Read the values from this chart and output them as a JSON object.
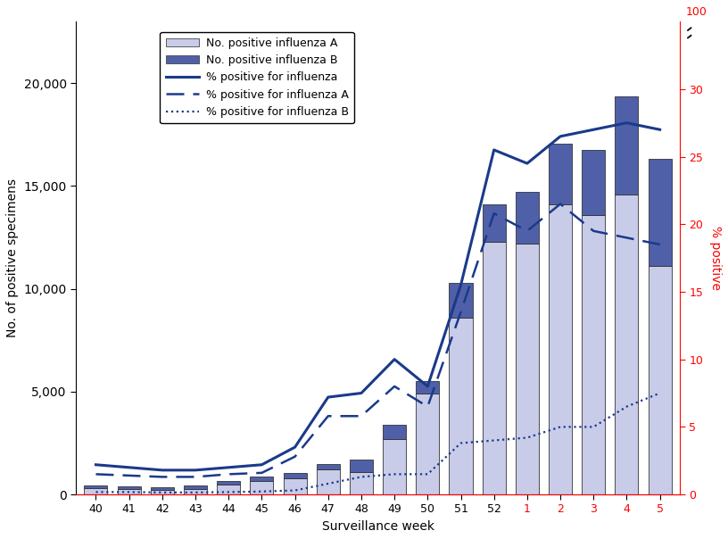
{
  "weeks": [
    "40",
    "41",
    "42",
    "43",
    "44",
    "45",
    "46",
    "47",
    "48",
    "49",
    "50",
    "51",
    "52",
    "1",
    "2",
    "3",
    "4",
    "5"
  ],
  "week_colors": [
    "black",
    "black",
    "black",
    "black",
    "black",
    "black",
    "black",
    "black",
    "black",
    "black",
    "black",
    "black",
    "black",
    "red",
    "red",
    "red",
    "red",
    "red"
  ],
  "flu_A": [
    290,
    270,
    230,
    280,
    480,
    650,
    800,
    1200,
    1100,
    2700,
    4900,
    8600,
    12300,
    12200,
    14100,
    13600,
    14600,
    11100
  ],
  "flu_B": [
    130,
    120,
    120,
    150,
    180,
    220,
    250,
    300,
    600,
    700,
    600,
    1700,
    1800,
    2500,
    2950,
    3150,
    4750,
    5200
  ],
  "pct_total": [
    2.2,
    2.0,
    1.8,
    1.8,
    2.0,
    2.2,
    3.5,
    7.2,
    7.5,
    10.0,
    8.0,
    15.5,
    25.5,
    24.5,
    26.5,
    27.0,
    27.5,
    27.0
  ],
  "pct_A": [
    1.5,
    1.4,
    1.3,
    1.3,
    1.5,
    1.6,
    2.8,
    5.8,
    5.8,
    8.0,
    6.5,
    13.5,
    20.8,
    19.5,
    21.5,
    19.5,
    19.0,
    18.5
  ],
  "pct_B": [
    0.18,
    0.18,
    0.15,
    0.15,
    0.18,
    0.22,
    0.3,
    0.8,
    1.3,
    1.5,
    1.5,
    3.8,
    4.0,
    4.2,
    5.0,
    5.0,
    6.5,
    7.5
  ],
  "color_A": "#c8cce8",
  "color_B": "#5060a8",
  "line_color": "#1a3a8a",
  "ylabel_left": "No. of positive specimens",
  "ylabel_right": "% positive",
  "xlabel": "Surveillance week",
  "ylim_left": [
    0,
    23000
  ],
  "ylim_right": [
    0,
    35
  ],
  "yticks_left": [
    0,
    5000,
    10000,
    15000,
    20000
  ],
  "yticks_right": [
    0,
    5,
    10,
    15,
    20,
    25,
    30
  ]
}
